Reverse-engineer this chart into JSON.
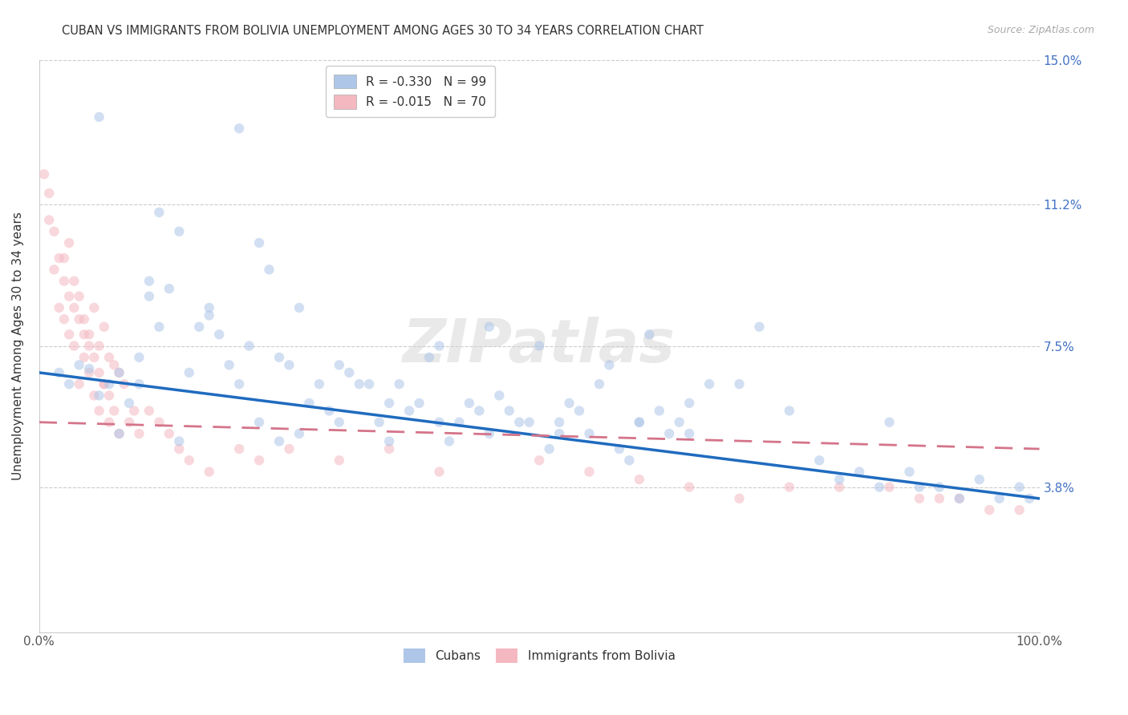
{
  "title": "CUBAN VS IMMIGRANTS FROM BOLIVIA UNEMPLOYMENT AMONG AGES 30 TO 34 YEARS CORRELATION CHART",
  "source": "Source: ZipAtlas.com",
  "ylabel": "Unemployment Among Ages 30 to 34 years",
  "xlim": [
    0,
    100
  ],
  "ylim": [
    0,
    15
  ],
  "ytick_vals": [
    0,
    3.8,
    7.5,
    11.2,
    15.0
  ],
  "legend_entry_1": "R = -0.330   N = 99",
  "legend_entry_2": "R = -0.015   N = 70",
  "cuban_color": "#aec6e8",
  "cuban_line_color": "#1f6bbf",
  "bolivia_color": "#f4b8c1",
  "bolivia_line_color": "#d4748a",
  "background_color": "#ffffff",
  "grid_color": "#cccccc",
  "right_axis_color": "#4472c4",
  "watermark": "ZIPatlas",
  "marker_size": 80,
  "marker_alpha": 0.55,
  "cubans_x": [
    2.0,
    3.0,
    4.0,
    5.0,
    6.0,
    7.0,
    8.0,
    9.0,
    10.0,
    11.0,
    12.0,
    13.0,
    14.0,
    15.0,
    16.0,
    17.0,
    18.0,
    19.0,
    20.0,
    21.0,
    22.0,
    23.0,
    24.0,
    25.0,
    26.0,
    27.0,
    28.0,
    29.0,
    30.0,
    31.0,
    32.0,
    33.0,
    34.0,
    35.0,
    36.0,
    37.0,
    38.0,
    39.0,
    40.0,
    41.0,
    42.0,
    43.0,
    44.0,
    45.0,
    46.0,
    47.0,
    48.0,
    49.0,
    50.0,
    51.0,
    52.0,
    53.0,
    54.0,
    55.0,
    56.0,
    57.0,
    58.0,
    59.0,
    60.0,
    61.0,
    62.0,
    63.0,
    64.0,
    65.0,
    67.0,
    70.0,
    72.0,
    75.0,
    78.0,
    80.0,
    82.0,
    84.0,
    85.0,
    87.0,
    88.0,
    90.0,
    92.0,
    94.0,
    96.0,
    98.0,
    99.0,
    6.0,
    8.0,
    10.0,
    11.0,
    12.0,
    14.0,
    17.0,
    20.0,
    22.0,
    24.0,
    26.0,
    30.0,
    35.0,
    40.0,
    45.0,
    52.0,
    60.0,
    65.0
  ],
  "cubans_y": [
    6.8,
    6.5,
    7.0,
    6.9,
    6.2,
    6.5,
    6.8,
    6.0,
    6.5,
    9.2,
    8.0,
    9.0,
    10.5,
    6.8,
    8.0,
    8.3,
    7.8,
    7.0,
    6.5,
    7.5,
    10.2,
    9.5,
    7.2,
    7.0,
    8.5,
    6.0,
    6.5,
    5.8,
    7.0,
    6.8,
    6.5,
    6.5,
    5.5,
    6.0,
    6.5,
    5.8,
    6.0,
    7.2,
    7.5,
    5.0,
    5.5,
    6.0,
    5.8,
    8.0,
    6.2,
    5.8,
    5.5,
    5.5,
    7.5,
    4.8,
    5.5,
    6.0,
    5.8,
    5.2,
    6.5,
    7.0,
    4.8,
    4.5,
    5.5,
    7.8,
    5.8,
    5.2,
    5.5,
    6.0,
    6.5,
    6.5,
    8.0,
    5.8,
    4.5,
    4.0,
    4.2,
    3.8,
    5.5,
    4.2,
    3.8,
    3.8,
    3.5,
    4.0,
    3.5,
    3.8,
    3.5,
    13.5,
    5.2,
    7.2,
    8.8,
    11.0,
    5.0,
    8.5,
    13.2,
    5.5,
    5.0,
    5.2,
    5.5,
    5.0,
    5.5,
    5.2,
    5.2,
    5.5,
    5.2
  ],
  "bolivia_x": [
    0.5,
    1.0,
    1.5,
    2.0,
    2.5,
    2.5,
    3.0,
    3.0,
    3.5,
    3.5,
    4.0,
    4.0,
    4.5,
    4.5,
    5.0,
    5.0,
    5.5,
    5.5,
    6.0,
    6.0,
    6.5,
    6.5,
    7.0,
    7.0,
    7.5,
    7.5,
    8.0,
    8.0,
    8.5,
    9.0,
    9.5,
    10.0,
    11.0,
    12.0,
    13.0,
    14.0,
    15.0,
    17.0,
    20.0,
    22.0,
    25.0,
    30.0,
    35.0,
    40.0,
    50.0,
    55.0,
    60.0,
    65.0,
    70.0,
    75.0,
    80.0,
    85.0,
    88.0,
    90.0,
    92.0,
    95.0,
    98.0,
    1.0,
    1.5,
    2.0,
    2.5,
    3.0,
    3.5,
    4.0,
    4.5,
    5.0,
    5.5,
    6.0,
    6.5,
    7.0
  ],
  "bolivia_y": [
    12.0,
    10.8,
    9.5,
    8.5,
    9.8,
    8.2,
    10.2,
    7.8,
    9.2,
    7.5,
    8.8,
    6.5,
    8.2,
    7.2,
    7.8,
    6.8,
    8.5,
    6.2,
    7.5,
    5.8,
    8.0,
    6.5,
    7.2,
    5.5,
    7.0,
    5.8,
    6.8,
    5.2,
    6.5,
    5.5,
    5.8,
    5.2,
    5.8,
    5.5,
    5.2,
    4.8,
    4.5,
    4.2,
    4.8,
    4.5,
    4.8,
    4.5,
    4.8,
    4.2,
    4.5,
    4.2,
    4.0,
    3.8,
    3.5,
    3.8,
    3.8,
    3.8,
    3.5,
    3.5,
    3.5,
    3.2,
    3.2,
    11.5,
    10.5,
    9.8,
    9.2,
    8.8,
    8.5,
    8.2,
    7.8,
    7.5,
    7.2,
    6.8,
    6.5,
    6.2
  ],
  "cuban_trend_x": [
    0,
    100
  ],
  "cuban_trend_y": [
    6.8,
    3.5
  ],
  "bolivia_trend_x": [
    0,
    100
  ],
  "bolivia_trend_y": [
    5.5,
    4.8
  ]
}
